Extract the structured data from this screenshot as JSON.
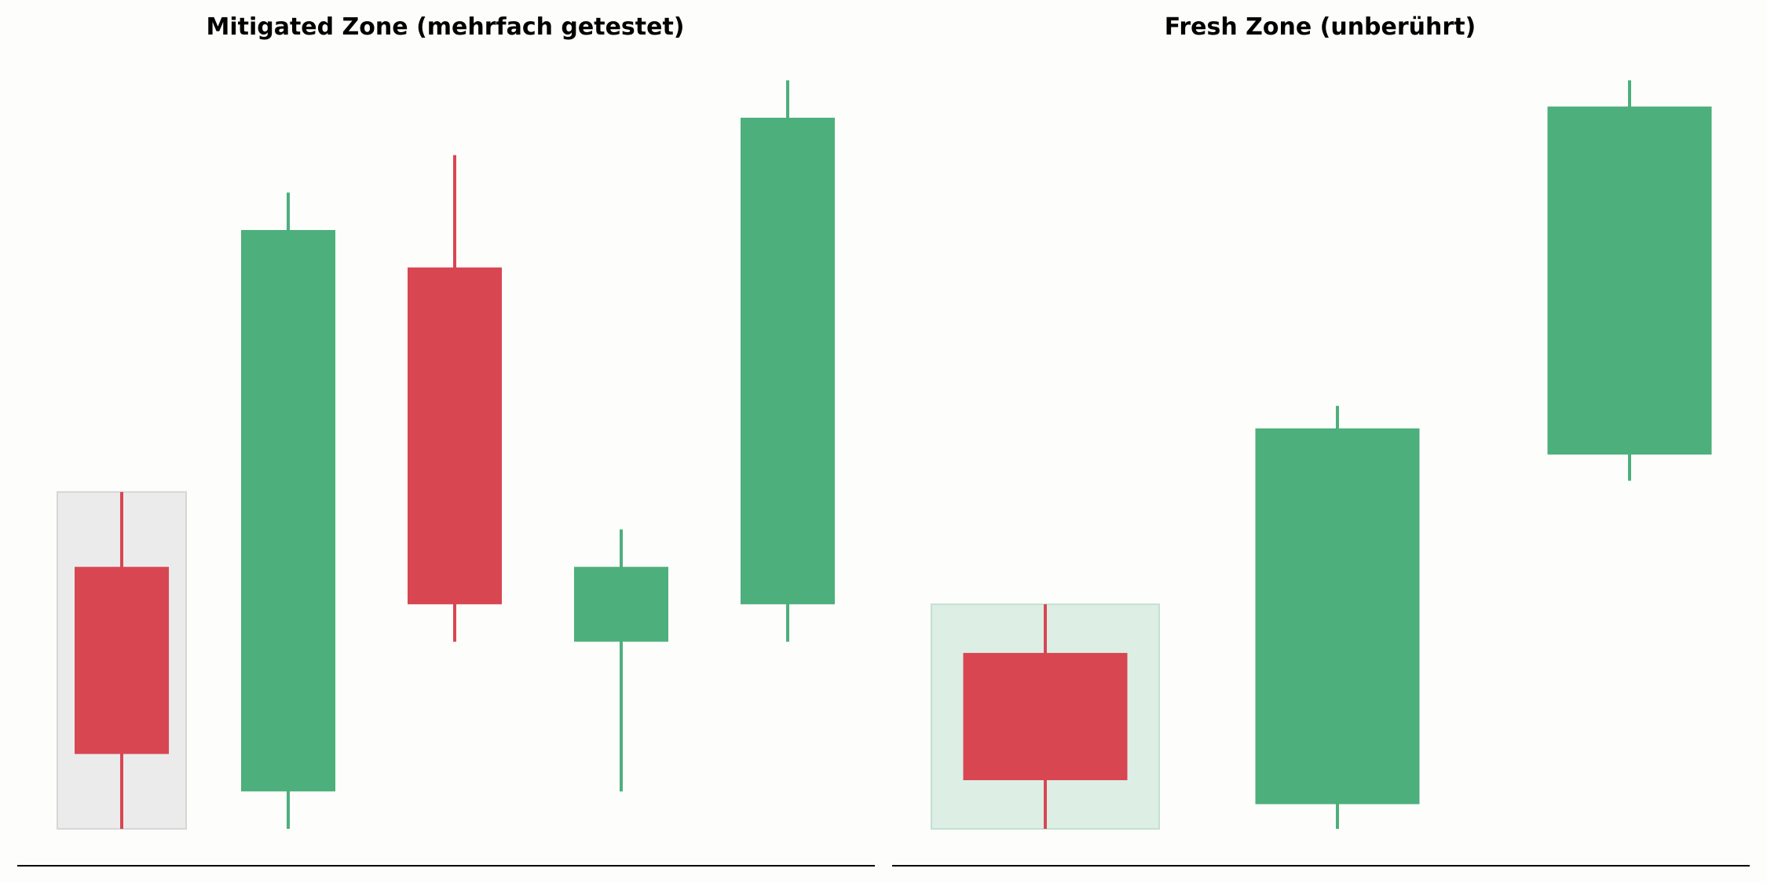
{
  "colors": {
    "background": "#fdfdfb",
    "bullish": "#4daf7c",
    "bearish": "#d84652",
    "zone_mitigated_fill": "#ebebeb",
    "zone_mitigated_stroke": "#d6d6d6",
    "zone_fresh_fill": "#ddeee5",
    "zone_fresh_stroke": "#c4e0d1"
  },
  "chart_data": [
    {
      "type": "candlestick",
      "title": "Mitigated Zone (mehrfach getestet)",
      "xlabel": "",
      "ylabel": "",
      "grid": false,
      "axes_visible": false,
      "ylim": [
        0,
        100
      ],
      "zone": {
        "kind": "mitigated",
        "candle_index": 0,
        "low": 5,
        "high": 50
      },
      "candles": [
        {
          "open": 40,
          "close": 15,
          "high": 50,
          "low": 5,
          "direction": "bearish"
        },
        {
          "open": 10,
          "close": 85,
          "high": 90,
          "low": 5,
          "direction": "bullish"
        },
        {
          "open": 80,
          "close": 35,
          "high": 95,
          "low": 30,
          "direction": "bearish"
        },
        {
          "open": 30,
          "close": 40,
          "high": 45,
          "low": 10,
          "direction": "bullish"
        },
        {
          "open": 35,
          "close": 100,
          "high": 105,
          "low": 30,
          "direction": "bullish"
        }
      ]
    },
    {
      "type": "candlestick",
      "title": "Fresh Zone (unberührt)",
      "xlabel": "",
      "ylabel": "",
      "grid": false,
      "axes_visible": false,
      "ylim": [
        0,
        100
      ],
      "zone": {
        "kind": "fresh",
        "candle_index": 0,
        "low": 5,
        "high": 35
      },
      "candles": [
        {
          "open": 28.5,
          "close": 11.5,
          "high": 35,
          "low": 5,
          "direction": "bearish"
        },
        {
          "open": 8.3,
          "close": 58.5,
          "high": 61.5,
          "low": 5,
          "direction": "bullish"
        },
        {
          "open": 55,
          "close": 101.5,
          "high": 105,
          "low": 51.5,
          "direction": "bullish"
        }
      ]
    }
  ]
}
